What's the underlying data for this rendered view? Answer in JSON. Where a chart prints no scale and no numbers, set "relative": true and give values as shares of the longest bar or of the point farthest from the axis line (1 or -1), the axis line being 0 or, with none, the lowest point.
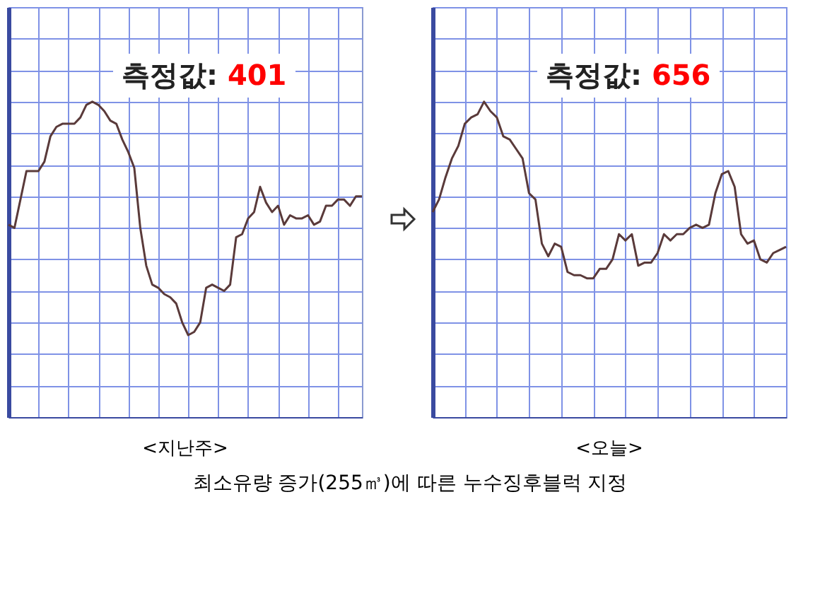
{
  "chart_data": [
    {
      "type": "line",
      "title": "<지난주>",
      "relative": true,
      "grid": true,
      "tick_labels": false,
      "color": "#5a3a3a",
      "annotations": [
        "측정값: 401"
      ],
      "categories": [
        null,
        null,
        null,
        null,
        null,
        null,
        null,
        null,
        null,
        null,
        null,
        null,
        null,
        null,
        null,
        null,
        null,
        null,
        null,
        null,
        null,
        null,
        null,
        null,
        null,
        null,
        null,
        null,
        null,
        null,
        null,
        null,
        null,
        null,
        null,
        null,
        null,
        null,
        null,
        null,
        null,
        null,
        null,
        null,
        null,
        null,
        null,
        null,
        null,
        null,
        null,
        null,
        null,
        null,
        null,
        null,
        null,
        null,
        null,
        null
      ],
      "values": [
        0.61,
        0.6,
        0.69,
        0.78,
        0.78,
        0.78,
        0.81,
        0.89,
        0.92,
        0.93,
        0.93,
        0.93,
        0.95,
        0.99,
        1,
        0.99,
        0.97,
        0.94,
        0.93,
        0.88,
        0.84,
        0.79,
        0.6,
        0.48,
        0.42,
        0.41,
        0.39,
        0.38,
        0.36,
        0.3,
        0.26,
        0.27,
        0.3,
        0.41,
        0.42,
        0.41,
        0.4,
        0.42,
        0.57,
        0.58,
        0.63,
        0.65,
        0.73,
        0.68,
        0.65,
        0.67,
        0.61,
        0.64,
        0.63,
        0.63,
        0.64,
        0.61,
        0.62,
        0.67,
        0.67,
        0.69,
        0.69,
        0.67,
        0.7,
        0.7
      ]
    },
    {
      "type": "line",
      "title": "<오늘>",
      "relative": true,
      "grid": true,
      "tick_labels": false,
      "color": "#5a3a3a",
      "annotations": [
        "측정값: 656",
        "최소유량 증가(255㎥)에 따른 누수징후블럭 지정"
      ],
      "categories": [
        null,
        null,
        null,
        null,
        null,
        null,
        null,
        null,
        null,
        null,
        null,
        null,
        null,
        null,
        null,
        null,
        null,
        null,
        null,
        null,
        null,
        null,
        null,
        null,
        null,
        null,
        null,
        null,
        null,
        null,
        null,
        null,
        null,
        null,
        null,
        null,
        null,
        null,
        null,
        null,
        null,
        null,
        null,
        null,
        null,
        null,
        null,
        null,
        null,
        null,
        null,
        null,
        null,
        null,
        null,
        null
      ],
      "values": [
        0.65,
        0.69,
        0.76,
        0.82,
        0.86,
        0.93,
        0.95,
        0.96,
        1,
        0.97,
        0.95,
        0.89,
        0.88,
        0.85,
        0.82,
        0.71,
        0.69,
        0.55,
        0.51,
        0.55,
        0.54,
        0.46,
        0.45,
        0.45,
        0.44,
        0.44,
        0.47,
        0.47,
        0.5,
        0.58,
        0.56,
        0.58,
        0.48,
        0.49,
        0.49,
        0.52,
        0.58,
        0.56,
        0.58,
        0.58,
        0.6,
        0.61,
        0.6,
        0.61,
        0.71,
        0.77,
        0.78,
        0.73,
        0.58,
        0.55,
        0.56,
        0.5,
        0.49,
        0.52,
        0.53,
        0.54
      ]
    }
  ]
}
